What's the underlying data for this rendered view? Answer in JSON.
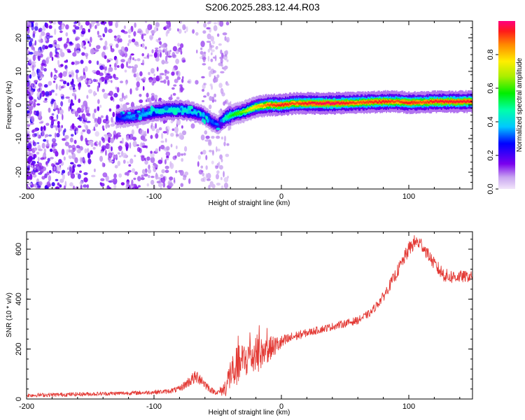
{
  "title": "S206.2025.283.12.44.R03",
  "chart_data": [
    {
      "type": "heatmap",
      "xlabel": "Height of straight line (km)",
      "ylabel": "Frequency (Hz)",
      "xlim": [
        -200,
        150
      ],
      "ylim": [
        -25,
        25
      ],
      "x_ticks": [
        -200,
        -100,
        0,
        100
      ],
      "y_ticks": [
        -20,
        -10,
        0,
        10,
        20
      ],
      "x_tick_labels": [
        "-200",
        "-100",
        "0",
        "100"
      ],
      "y_tick_labels": [
        "-20",
        "-10",
        "0",
        "10",
        "20"
      ],
      "colorbar": {
        "label": "Normalized spectral amplitude",
        "range": [
          0,
          1
        ],
        "ticks": [
          0.0,
          0.2,
          0.4,
          0.6,
          0.8
        ],
        "tick_labels": [
          "0.0",
          "0.2",
          "0.4",
          "0.6",
          "0.8"
        ]
      },
      "ridge": {
        "x": [
          -130,
          -120,
          -110,
          -100,
          -90,
          -80,
          -70,
          -62,
          -55,
          -50,
          -45,
          -40,
          -30,
          -20,
          -10,
          0,
          10,
          20,
          40,
          60,
          80,
          90,
          100,
          110,
          120,
          150
        ],
        "frequency": [
          -4,
          -3.5,
          -3,
          -2,
          -1.5,
          -1.5,
          -2,
          -3,
          -5,
          -6,
          -4,
          -3,
          -2,
          -0.5,
          0,
          0,
          0.5,
          0.5,
          0.5,
          0.7,
          1,
          1,
          0.7,
          0.8,
          1,
          1
        ],
        "amplitude": [
          0.25,
          0.35,
          0.35,
          0.4,
          0.45,
          0.45,
          0.4,
          0.35,
          0.3,
          0.3,
          0.45,
          0.55,
          0.65,
          0.8,
          0.9,
          0.95,
          0.9,
          0.95,
          0.98,
          0.9,
          0.95,
          0.9,
          0.95,
          0.9,
          0.95,
          0.95
        ]
      },
      "noise_x_range": [
        -200,
        -45
      ]
    },
    {
      "type": "line",
      "xlabel": "Height of straight line (km)",
      "ylabel": "SNR (10 * v/v)",
      "xlim": [
        -200,
        150
      ],
      "ylim": [
        0,
        670
      ],
      "x_ticks": [
        -200,
        -100,
        0,
        100
      ],
      "y_ticks": [
        0,
        200,
        400,
        600
      ],
      "x_tick_labels": [
        "-200",
        "-100",
        "0",
        "100"
      ],
      "y_tick_labels": [
        "0",
        "200",
        "400",
        "600"
      ],
      "color": "#e33a35",
      "series": [
        {
          "name": "SNR",
          "x": [
            -200,
            -150,
            -110,
            -90,
            -80,
            -75,
            -70,
            -65,
            -60,
            -55,
            -50,
            -45,
            -42,
            -40,
            -35,
            -30,
            -25,
            -20,
            -15,
            -10,
            0,
            10,
            20,
            40,
            60,
            70,
            80,
            90,
            100,
            105,
            110,
            115,
            120,
            125,
            130,
            140,
            150
          ],
          "mean": [
            15,
            20,
            25,
            30,
            40,
            60,
            80,
            90,
            60,
            35,
            25,
            40,
            70,
            100,
            130,
            150,
            170,
            170,
            185,
            200,
            225,
            250,
            265,
            290,
            315,
            345,
            410,
            500,
            600,
            630,
            620,
            580,
            540,
            510,
            490,
            490,
            490
          ],
          "noise": [
            8,
            8,
            8,
            9,
            12,
            18,
            25,
            30,
            20,
            12,
            10,
            30,
            60,
            70,
            80,
            80,
            75,
            70,
            60,
            50,
            30,
            20,
            15,
            15,
            15,
            15,
            20,
            25,
            30,
            30,
            28,
            25,
            25,
            30,
            30,
            25,
            20
          ]
        }
      ]
    }
  ]
}
